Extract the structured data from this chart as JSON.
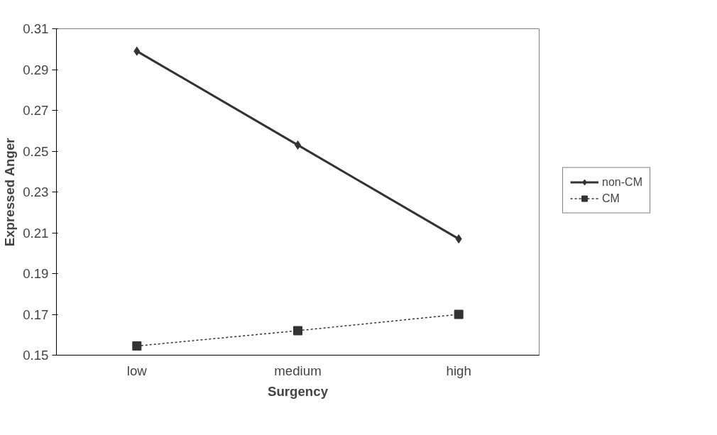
{
  "chart_data": {
    "type": "line",
    "xlabel": "Surgency",
    "ylabel": "Expressed Anger",
    "categories": [
      "low",
      "medium",
      "high"
    ],
    "ylim": [
      0.15,
      0.31
    ],
    "yticks": [
      0.15,
      0.17,
      0.19,
      0.21,
      0.23,
      0.25,
      0.27,
      0.29,
      0.31
    ],
    "grid": false,
    "legend": "right",
    "series": [
      {
        "name": "non-CM",
        "color": "#333333",
        "marker": "diamond",
        "line_style": "solid",
        "values": [
          0.299,
          0.253,
          0.207
        ]
      },
      {
        "name": "CM",
        "color": "#333333",
        "marker": "square",
        "line_style": "dotted",
        "values": [
          0.1545,
          0.162,
          0.17
        ]
      }
    ]
  }
}
